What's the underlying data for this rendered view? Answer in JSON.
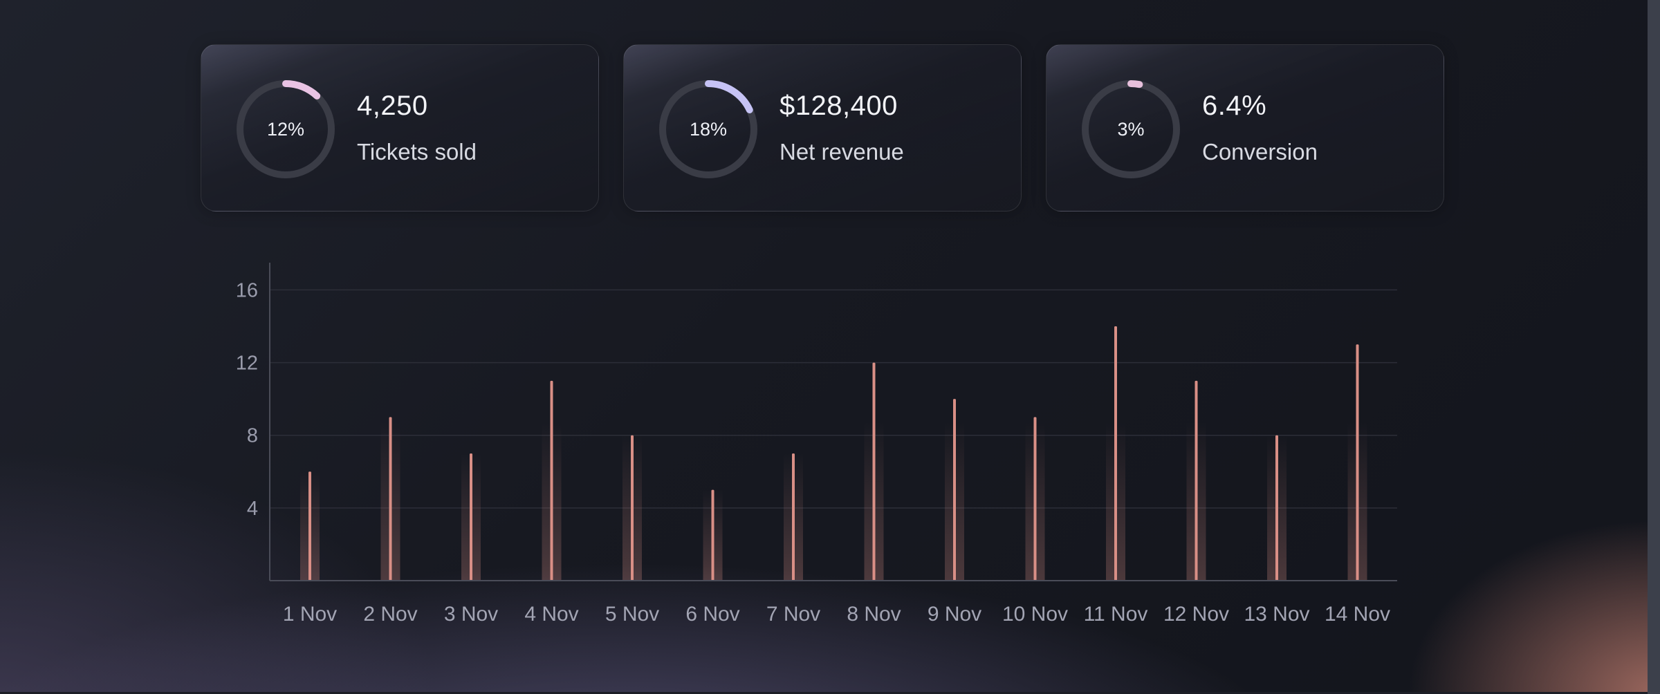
{
  "cards": [
    {
      "percent_label": "12%",
      "percent": 12,
      "value": "4,250",
      "label": "Tickets sold",
      "arc_color": "#e9c3e4"
    },
    {
      "percent_label": "18%",
      "percent": 18,
      "value": "$128,400",
      "label": "Net revenue",
      "arc_color": "#c6c3f5"
    },
    {
      "percent_label": "3%",
      "percent": 3,
      "value": "6.4%",
      "label": "Conversion",
      "arc_color": "#e7c0dc"
    }
  ],
  "colors": {
    "bar": "#d98f86",
    "ring_track": "#3a3c46",
    "grid": "#2c2e38",
    "axis": "#4a4c58"
  },
  "chart_data": {
    "type": "bar",
    "categories": [
      "1 Nov",
      "2 Nov",
      "3 Nov",
      "4 Nov",
      "5 Nov",
      "6 Nov",
      "7 Nov",
      "8 Nov",
      "9 Nov",
      "10 Nov",
      "11 Nov",
      "12 Nov",
      "13 Nov",
      "14 Nov"
    ],
    "values": [
      6,
      9,
      7,
      11,
      8,
      5,
      7,
      12,
      10,
      9,
      14,
      11,
      8,
      13
    ],
    "yticks": [
      4,
      8,
      12,
      16
    ],
    "ylim": [
      0,
      17.5
    ],
    "grid": true,
    "title": "",
    "xlabel": "",
    "ylabel": ""
  }
}
